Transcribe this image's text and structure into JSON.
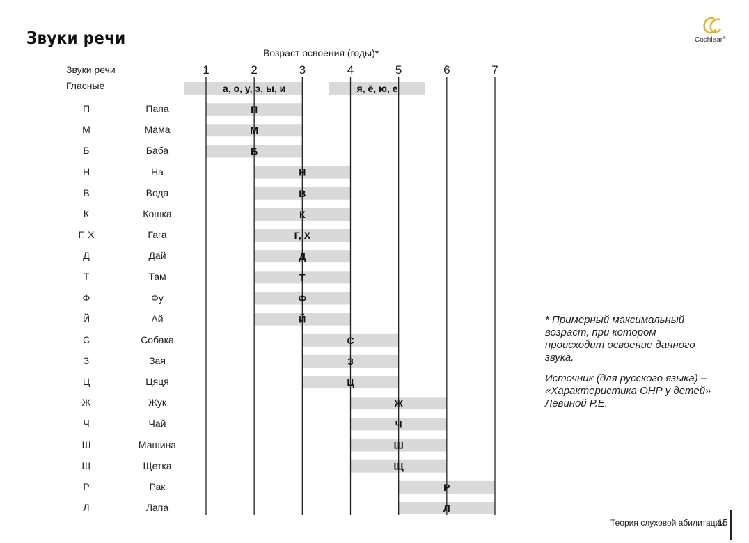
{
  "page": {
    "title": "Звуки речи",
    "brand": "Cochlear",
    "brand_mark": "®",
    "footer_text": "Теория слуховой абилитации",
    "page_number": "15"
  },
  "footnote": {
    "line1": "* Примерный максимальный возраст, при котором происходит освоение данного звука.",
    "line2": "Источник (для русского языка) – «Характеристика ОНР у детей» Левиной Р.Е."
  },
  "colors": {
    "bar": "#d9d9d9",
    "axis_line": "#222222",
    "logo": "#e3b52c"
  },
  "chart_data": {
    "type": "bar",
    "orientation": "horizontal-range",
    "title": "Возраст освоения (годы)*",
    "row_header": "Звуки речи",
    "x_ticks": [
      "1",
      "2",
      "3",
      "4",
      "5",
      "6",
      "7"
    ],
    "xlim": [
      1,
      7
    ],
    "grid": "vertical lines at each year",
    "rows": [
      {
        "sound": "Гласные",
        "word": "",
        "bars": [
          {
            "label": "а, о, у, э, ы, и",
            "start": 0.55,
            "end": 3.0
          },
          {
            "label": "я, ё, ю, е",
            "start": 3.55,
            "end": 5.55
          }
        ]
      },
      {
        "sound": "П",
        "word": "Папа",
        "bars": [
          {
            "label": "П",
            "start": 1.0,
            "end": 3.0
          }
        ]
      },
      {
        "sound": "М",
        "word": "Мама",
        "bars": [
          {
            "label": "М",
            "start": 1.0,
            "end": 3.0
          }
        ]
      },
      {
        "sound": "Б",
        "word": "Баба",
        "bars": [
          {
            "label": "Б",
            "start": 1.0,
            "end": 3.0
          }
        ]
      },
      {
        "sound": "Н",
        "word": "На",
        "bars": [
          {
            "label": "Н",
            "start": 2.0,
            "end": 4.0
          }
        ]
      },
      {
        "sound": "В",
        "word": "Вода",
        "bars": [
          {
            "label": "В",
            "start": 2.0,
            "end": 4.0
          }
        ]
      },
      {
        "sound": "К",
        "word": "Кошка",
        "bars": [
          {
            "label": "К",
            "start": 2.0,
            "end": 4.0
          }
        ]
      },
      {
        "sound": "Г, Х",
        "word": "Гага",
        "bars": [
          {
            "label": "Г, Х",
            "start": 2.0,
            "end": 4.0
          }
        ]
      },
      {
        "sound": "Д",
        "word": "Дай",
        "bars": [
          {
            "label": "Д",
            "start": 2.0,
            "end": 4.0
          }
        ]
      },
      {
        "sound": "Т",
        "word": "Там",
        "bars": [
          {
            "label": "Т",
            "start": 2.0,
            "end": 4.0
          }
        ]
      },
      {
        "sound": "Ф",
        "word": "Фу",
        "bars": [
          {
            "label": "Ф",
            "start": 2.0,
            "end": 4.0
          }
        ]
      },
      {
        "sound": "Й",
        "word": "Ай",
        "bars": [
          {
            "label": "Й",
            "start": 2.0,
            "end": 4.0
          }
        ]
      },
      {
        "sound": "С",
        "word": "Собака",
        "bars": [
          {
            "label": "С",
            "start": 3.0,
            "end": 5.0
          }
        ]
      },
      {
        "sound": "З",
        "word": "Зая",
        "bars": [
          {
            "label": "З",
            "start": 3.0,
            "end": 5.0
          }
        ]
      },
      {
        "sound": "Ц",
        "word": "Цяця",
        "bars": [
          {
            "label": "Ц",
            "start": 3.0,
            "end": 5.0
          }
        ]
      },
      {
        "sound": "Ж",
        "word": "Жук",
        "bars": [
          {
            "label": "Ж",
            "start": 4.0,
            "end": 6.0
          }
        ]
      },
      {
        "sound": "Ч",
        "word": "Чай",
        "bars": [
          {
            "label": "Ч",
            "start": 4.0,
            "end": 6.0
          }
        ]
      },
      {
        "sound": "Ш",
        "word": "Машина",
        "bars": [
          {
            "label": "Ш",
            "start": 4.0,
            "end": 6.0
          }
        ]
      },
      {
        "sound": "Щ",
        "word": "Щетка",
        "bars": [
          {
            "label": "Щ",
            "start": 4.0,
            "end": 6.0
          }
        ]
      },
      {
        "sound": "Р",
        "word": "Рак",
        "bars": [
          {
            "label": "Р",
            "start": 5.0,
            "end": 7.0
          }
        ]
      },
      {
        "sound": "Л",
        "word": "Лапа",
        "bars": [
          {
            "label": "Л",
            "start": 5.0,
            "end": 7.0
          }
        ]
      }
    ]
  }
}
